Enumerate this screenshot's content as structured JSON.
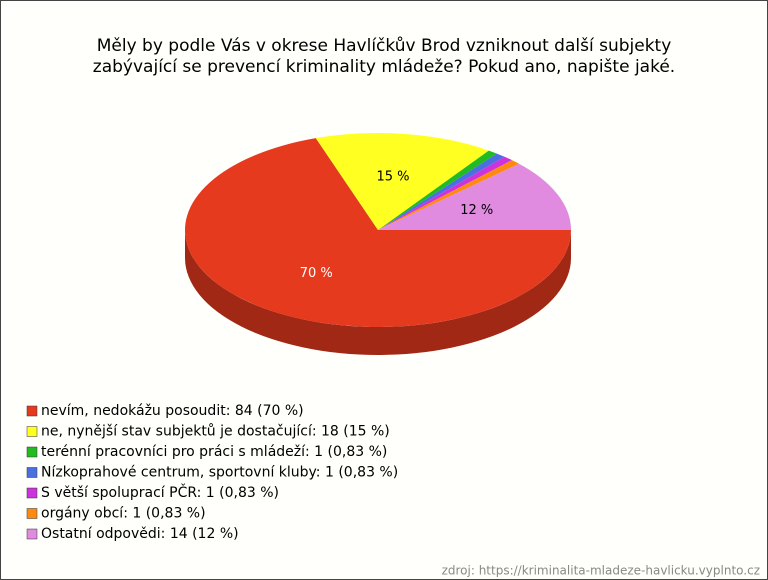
{
  "chart_data": {
    "type": "pie",
    "title": [
      "Měly by podle Vás v okrese Havlíčkův Brod vzniknout další subjekty",
      "zabývající se prevencí kriminality mládeže? Pokud ano, napište jaké."
    ],
    "categories": [
      "nevím, nedokážu posoudit: 84 (70 %)",
      "ne, nynější stav subjektů je dostačující: 18 (15 %)",
      "terénní pracovníci pro práci s mládeží: 1 (0,83 %)",
      "Nízkoprahové centrum, sportovní kluby: 1 (0,83 %)",
      "S větší spoluprací PČR: 1 (0,83 %)",
      "orgány obcí: 1 (0,83 %)",
      "Ostatní odpovědi: 14 (12 %)"
    ],
    "values": [
      70,
      15,
      0.83,
      0.83,
      0.83,
      0.83,
      12
    ],
    "value_labels": [
      "70 %",
      "15 %",
      null,
      null,
      null,
      null,
      "12 %"
    ],
    "colors": [
      "#e63a1e",
      "#ffff22",
      "#22bb22",
      "#4a6fe0",
      "#cc33dd",
      "#ff8a10",
      "#e08ae0"
    ],
    "source": "zdroj: https://kriminalita-mladeze-havlicku.vyplnto.cz"
  }
}
